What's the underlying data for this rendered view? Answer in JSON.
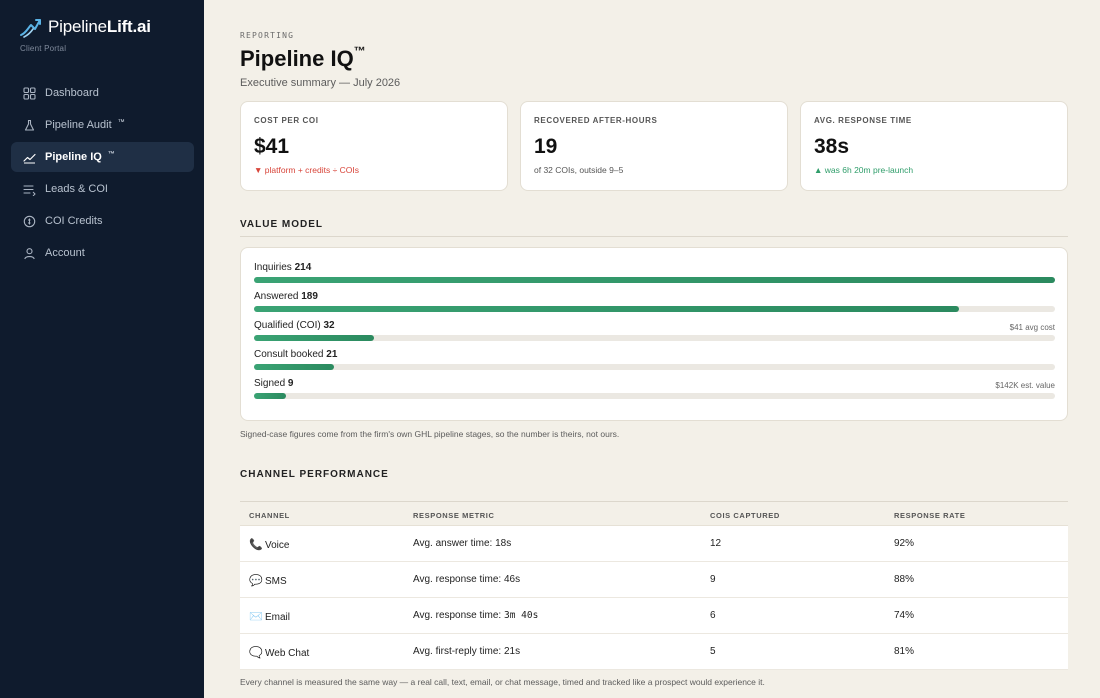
{
  "brand": {
    "name_light": "Pipeline",
    "name_bold": "Lift.ai",
    "subtitle": "Client Portal"
  },
  "sidebar": {
    "items": [
      {
        "label": "Dashboard",
        "icon": "grid-icon",
        "badge": ""
      },
      {
        "label": "Pipeline Audit",
        "icon": "flask-icon",
        "badge": "™"
      },
      {
        "label": "Pipeline IQ",
        "icon": "trend-icon",
        "badge": "™",
        "active": true
      },
      {
        "label": "Leads & COI",
        "icon": "list-icon",
        "badge": ""
      },
      {
        "label": "COI Credits",
        "icon": "coin-icon",
        "badge": ""
      },
      {
        "label": "Account",
        "icon": "user-icon",
        "badge": ""
      }
    ]
  },
  "header": {
    "eyebrow": "REPORTING",
    "title": "Pipeline IQ",
    "title_mark": "™",
    "subtitle": "Executive summary — July 2026"
  },
  "kpis": [
    {
      "label": "COST PER COI",
      "value": "$41",
      "note": "▼ platform + credits ÷ COIs",
      "tone": "neg"
    },
    {
      "label": "RECOVERED AFTER-HOURS",
      "value": "19",
      "note": "of 32 COIs, outside 9–5",
      "tone": "neutral"
    },
    {
      "label": "AVG. RESPONSE TIME",
      "value": "38s",
      "note": "▲ was 6h 20m pre-launch",
      "tone": "pos"
    }
  ],
  "value_model": {
    "heading": "VALUE MODEL",
    "stages": [
      {
        "label": "Inquiries",
        "count": "214",
        "right": "",
        "fill": 1.0
      },
      {
        "label": "Answered",
        "count": "189",
        "right": "",
        "fill": 0.88
      },
      {
        "label": "Qualified (COI)",
        "count": "32",
        "right": "$41 avg cost",
        "fill": 0.15
      },
      {
        "label": "Consult booked",
        "count": "21",
        "right": "",
        "fill": 0.1
      },
      {
        "label": "Signed",
        "count": "9",
        "right": "$142K est. value",
        "fill": 0.04
      }
    ],
    "note": "Signed-case figures come from the firm's own GHL pipeline stages, so the number is theirs, not ours."
  },
  "channels": {
    "heading": "CHANNEL PERFORMANCE",
    "columns": [
      "CHANNEL",
      "RESPONSE METRIC",
      "COIS CAPTURED",
      "RESPONSE RATE"
    ],
    "rows": [
      {
        "icon": "📞",
        "channel": "Voice",
        "metric_label": "Avg. answer time: ",
        "metric_value": "18s",
        "captured": "12",
        "rate": "92%"
      },
      {
        "icon": "💬",
        "channel": "SMS",
        "metric_label": "Avg. response time: ",
        "metric_value": "46s",
        "captured": "9",
        "rate": "88%"
      },
      {
        "icon": "✉️",
        "channel": "Email",
        "metric_label": "Avg. response time: ",
        "metric_value": "3m 40s",
        "captured": "6",
        "rate": "74%"
      },
      {
        "icon": "🗨️",
        "channel": "Web Chat",
        "metric_label": "Avg. first-reply time: ",
        "metric_value": "21s",
        "captured": "5",
        "rate": "81%"
      }
    ],
    "note": "Every channel is measured the same way — a real call, text, email, or chat message, timed and tracked like a prospect would experience it."
  },
  "colors": {
    "sidebar_bg": "#0f1b2d",
    "page_bg": "#f3f0e8",
    "accent_green": "#2b8a5f",
    "negative_red": "#d8453a",
    "positive_green": "#2f9d6a"
  }
}
